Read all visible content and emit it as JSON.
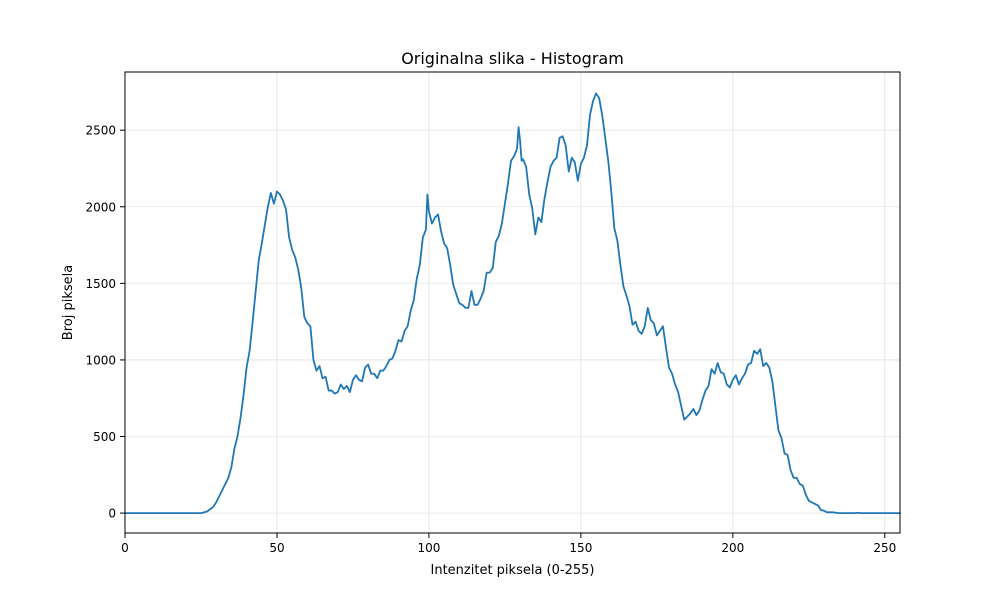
{
  "chart_data": {
    "type": "line",
    "title": "Originalna slika - Histogram",
    "xlabel": "Intenzitet piksela (0-255)",
    "ylabel": "Broj piksela",
    "xlim": [
      0,
      255
    ],
    "ylim": [
      -130,
      2880
    ],
    "xticks": [
      0,
      50,
      100,
      150,
      200,
      250
    ],
    "yticks": [
      0,
      500,
      1000,
      1500,
      2000,
      2500
    ],
    "grid": true,
    "color": "#1f77b4",
    "points": [
      [
        0,
        0
      ],
      [
        24,
        0
      ],
      [
        25,
        0
      ],
      [
        26,
        5
      ],
      [
        27,
        10
      ],
      [
        28,
        25
      ],
      [
        29,
        40
      ],
      [
        30,
        70
      ],
      [
        31,
        110
      ],
      [
        32,
        150
      ],
      [
        33,
        190
      ],
      [
        34,
        230
      ],
      [
        35,
        300
      ],
      [
        36,
        420
      ],
      [
        37,
        500
      ],
      [
        38,
        620
      ],
      [
        39,
        770
      ],
      [
        40,
        950
      ],
      [
        41,
        1060
      ],
      [
        42,
        1250
      ],
      [
        43,
        1450
      ],
      [
        44,
        1650
      ],
      [
        45,
        1760
      ],
      [
        46,
        1880
      ],
      [
        47,
        2000
      ],
      [
        48,
        2090
      ],
      [
        49,
        2020
      ],
      [
        50,
        2100
      ],
      [
        51,
        2080
      ],
      [
        52,
        2040
      ],
      [
        53,
        1980
      ],
      [
        54,
        1800
      ],
      [
        55,
        1720
      ],
      [
        56,
        1670
      ],
      [
        57,
        1590
      ],
      [
        58,
        1470
      ],
      [
        59,
        1280
      ],
      [
        60,
        1240
      ],
      [
        61,
        1220
      ],
      [
        62,
        1000
      ],
      [
        63,
        930
      ],
      [
        64,
        960
      ],
      [
        65,
        880
      ],
      [
        66,
        890
      ],
      [
        67,
        800
      ],
      [
        68,
        800
      ],
      [
        69,
        780
      ],
      [
        70,
        790
      ],
      [
        71,
        840
      ],
      [
        72,
        810
      ],
      [
        73,
        830
      ],
      [
        74,
        790
      ],
      [
        75,
        870
      ],
      [
        76,
        900
      ],
      [
        77,
        870
      ],
      [
        78,
        860
      ],
      [
        79,
        950
      ],
      [
        80,
        970
      ],
      [
        81,
        910
      ],
      [
        82,
        910
      ],
      [
        83,
        880
      ],
      [
        84,
        930
      ],
      [
        85,
        930
      ],
      [
        86,
        960
      ],
      [
        87,
        1000
      ],
      [
        88,
        1010
      ],
      [
        89,
        1060
      ],
      [
        90,
        1130
      ],
      [
        91,
        1120
      ],
      [
        92,
        1190
      ],
      [
        93,
        1220
      ],
      [
        94,
        1320
      ],
      [
        95,
        1390
      ],
      [
        96,
        1530
      ],
      [
        97,
        1620
      ],
      [
        98,
        1800
      ],
      [
        99,
        1850
      ],
      [
        99.5,
        2080
      ],
      [
        100,
        1970
      ],
      [
        101,
        1890
      ],
      [
        102,
        1930
      ],
      [
        103,
        1950
      ],
      [
        104,
        1840
      ],
      [
        105,
        1760
      ],
      [
        106,
        1730
      ],
      [
        107,
        1620
      ],
      [
        108,
        1490
      ],
      [
        109,
        1430
      ],
      [
        110,
        1370
      ],
      [
        111,
        1360
      ],
      [
        112,
        1340
      ],
      [
        113,
        1340
      ],
      [
        114,
        1450
      ],
      [
        115,
        1360
      ],
      [
        116,
        1360
      ],
      [
        117,
        1400
      ],
      [
        118,
        1450
      ],
      [
        119,
        1570
      ],
      [
        120,
        1570
      ],
      [
        121,
        1600
      ],
      [
        122,
        1770
      ],
      [
        123,
        1810
      ],
      [
        124,
        1890
      ],
      [
        125,
        2020
      ],
      [
        126,
        2150
      ],
      [
        127,
        2300
      ],
      [
        128,
        2330
      ],
      [
        129,
        2380
      ],
      [
        129.5,
        2520
      ],
      [
        130,
        2430
      ],
      [
        130.5,
        2300
      ],
      [
        131,
        2310
      ],
      [
        132,
        2260
      ],
      [
        133,
        2080
      ],
      [
        134,
        1990
      ],
      [
        135,
        1820
      ],
      [
        136,
        1930
      ],
      [
        137,
        1900
      ],
      [
        138,
        2050
      ],
      [
        139,
        2160
      ],
      [
        140,
        2260
      ],
      [
        141,
        2300
      ],
      [
        142,
        2320
      ],
      [
        143,
        2450
      ],
      [
        144,
        2460
      ],
      [
        145,
        2400
      ],
      [
        146,
        2230
      ],
      [
        147,
        2320
      ],
      [
        148,
        2290
      ],
      [
        149,
        2170
      ],
      [
        150,
        2280
      ],
      [
        151,
        2320
      ],
      [
        152,
        2400
      ],
      [
        153,
        2600
      ],
      [
        154,
        2690
      ],
      [
        155,
        2740
      ],
      [
        156,
        2710
      ],
      [
        157,
        2600
      ],
      [
        158,
        2450
      ],
      [
        159,
        2300
      ],
      [
        160,
        2100
      ],
      [
        161,
        1860
      ],
      [
        162,
        1780
      ],
      [
        163,
        1620
      ],
      [
        164,
        1480
      ],
      [
        165,
        1420
      ],
      [
        166,
        1350
      ],
      [
        167,
        1230
      ],
      [
        168,
        1250
      ],
      [
        169,
        1190
      ],
      [
        170,
        1170
      ],
      [
        171,
        1220
      ],
      [
        172,
        1340
      ],
      [
        173,
        1260
      ],
      [
        174,
        1240
      ],
      [
        175,
        1160
      ],
      [
        176,
        1190
      ],
      [
        177,
        1220
      ],
      [
        178,
        1080
      ],
      [
        179,
        950
      ],
      [
        180,
        910
      ],
      [
        181,
        840
      ],
      [
        182,
        790
      ],
      [
        183,
        700
      ],
      [
        184,
        610
      ],
      [
        185,
        630
      ],
      [
        186,
        650
      ],
      [
        187,
        680
      ],
      [
        188,
        640
      ],
      [
        189,
        670
      ],
      [
        190,
        740
      ],
      [
        191,
        800
      ],
      [
        192,
        830
      ],
      [
        193,
        940
      ],
      [
        194,
        910
      ],
      [
        195,
        980
      ],
      [
        196,
        920
      ],
      [
        197,
        910
      ],
      [
        198,
        840
      ],
      [
        199,
        820
      ],
      [
        200,
        870
      ],
      [
        201,
        900
      ],
      [
        202,
        840
      ],
      [
        203,
        880
      ],
      [
        204,
        910
      ],
      [
        205,
        970
      ],
      [
        206,
        980
      ],
      [
        207,
        1060
      ],
      [
        208,
        1040
      ],
      [
        209,
        1070
      ],
      [
        210,
        960
      ],
      [
        211,
        980
      ],
      [
        212,
        950
      ],
      [
        213,
        860
      ],
      [
        214,
        700
      ],
      [
        215,
        540
      ],
      [
        216,
        490
      ],
      [
        217,
        390
      ],
      [
        218,
        380
      ],
      [
        219,
        280
      ],
      [
        220,
        230
      ],
      [
        221,
        230
      ],
      [
        222,
        190
      ],
      [
        223,
        180
      ],
      [
        224,
        120
      ],
      [
        225,
        80
      ],
      [
        226,
        70
      ],
      [
        227,
        60
      ],
      [
        228,
        50
      ],
      [
        229,
        20
      ],
      [
        230,
        15
      ],
      [
        231,
        5
      ],
      [
        232,
        5
      ],
      [
        233,
        5
      ],
      [
        234,
        2
      ],
      [
        235,
        0
      ],
      [
        236,
        0
      ],
      [
        240,
        0
      ],
      [
        241,
        2
      ],
      [
        242,
        0
      ],
      [
        255,
        0
      ]
    ]
  }
}
